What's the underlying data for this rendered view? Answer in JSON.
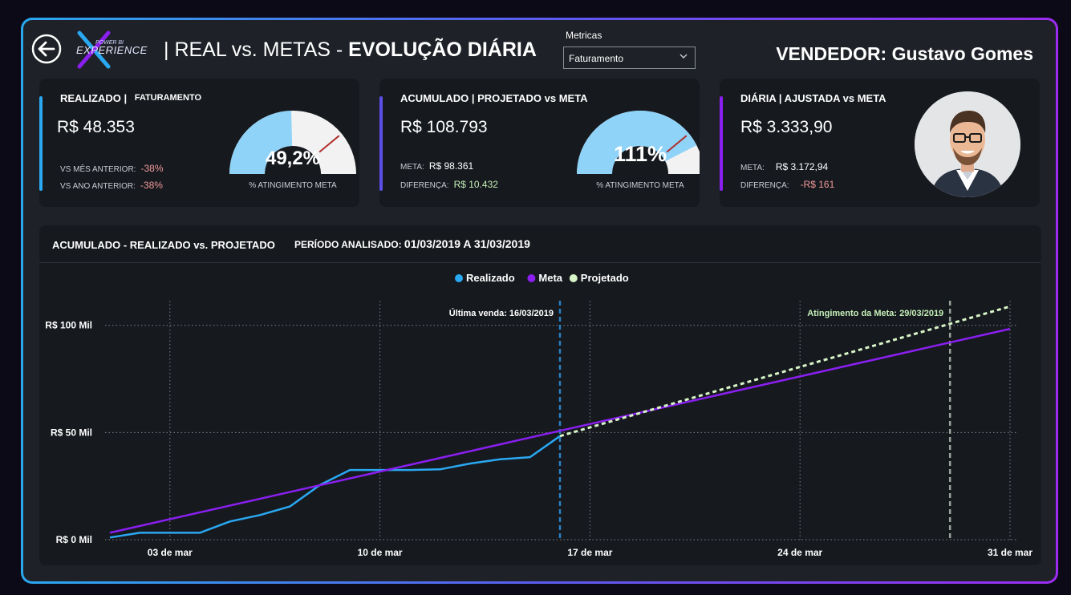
{
  "header": {
    "title_prefix": "| REAL vs. METAS - ",
    "title_bold": "EVOLUÇÃO DIÁRIA",
    "logo_text_top": "POWER BI",
    "logo_text_main": "EXPERIENCE",
    "metric_label": "Metricas",
    "metric_value": "Faturamento",
    "seller": "VENDEDOR: Gustavo Gomes"
  },
  "card1": {
    "title": "REALIZADO |",
    "subtitle": "FATURAMENTO",
    "value": "R$ 48.353",
    "row1_label": "VS MÊS ANTERIOR:",
    "row1_value": "-38%",
    "row2_label": "VS ANO ANTERIOR:",
    "row2_value": "-38%",
    "gauge_value": "49,2%",
    "gauge_fraction": 0.492,
    "gauge_target_fraction": 0.78,
    "gauge_label": "% ATINGIMENTO META"
  },
  "card2": {
    "title": "ACUMULADO | PROJETADO vs META",
    "value": "R$ 108.793",
    "row1_label": "META:",
    "row1_value": "R$ 98.361",
    "row2_label": "DIFERENÇA:",
    "row2_value": "R$ 10.432",
    "gauge_value": "111%",
    "gauge_fraction": 0.85,
    "gauge_target_fraction": 0.78,
    "gauge_label": "% ATINGIMENTO META"
  },
  "card3": {
    "title": "DIÁRIA | AJUSTADA vs META",
    "value": "R$ 3.333,90",
    "row1_label": "META:",
    "row1_value": "R$ 3.172,94",
    "row2_label": "DIFERENÇA:",
    "row2_value": "-R$ 161"
  },
  "colors": {
    "realizado": "#2aa8f2",
    "meta": "#8a1ff0",
    "projetado": "#d8f5c8",
    "gauge_fill": "#8fd3f8",
    "gauge_bg": "#f2f2f2",
    "gauge_target": "#b0302f",
    "card1_accent": "#2aa8f2",
    "card2_accent": "#5a4fe8",
    "card3_accent": "#8a1ff0"
  },
  "panel": {
    "title": "ACUMULADO - REALIZADO vs. PROJETADO",
    "period_label": "PERÍODO ANALISADO:",
    "period_value": "01/03/2019 A 31/03/2019"
  },
  "chart_data": {
    "type": "line",
    "x_start_day": 1,
    "x_end_day": 31,
    "ylim": [
      0,
      110000
    ],
    "yticks": [
      0,
      50000,
      100000
    ],
    "ytick_labels": [
      "R$ 0 Mil",
      "R$ 50 Mil",
      "R$ 100 Mil"
    ],
    "xticks": [
      3,
      10,
      17,
      24,
      31
    ],
    "xtick_labels": [
      "03 de mar",
      "10 de mar",
      "17 de mar",
      "24 de mar",
      "31 de mar"
    ],
    "grid": true,
    "legend_position": "top-center",
    "series": [
      {
        "name": "Realizado",
        "x": [
          1,
          2,
          3,
          4,
          5,
          6,
          7,
          8,
          9,
          10,
          11,
          12,
          13,
          14,
          15,
          16
        ],
        "values": [
          1000,
          3200,
          3200,
          3200,
          8500,
          11500,
          15500,
          25500,
          32500,
          32500,
          32500,
          32800,
          35500,
          37500,
          38500,
          48353
        ]
      },
      {
        "name": "Meta",
        "x": [
          1,
          31
        ],
        "values": [
          3200,
          98361
        ]
      },
      {
        "name": "Projetado",
        "x": [
          16,
          31
        ],
        "values": [
          48353,
          108793
        ]
      }
    ],
    "annotations": [
      {
        "text": "Última venda: 16/03/2019",
        "x": 16
      },
      {
        "text": "Atingimento da Meta: 29/03/2019",
        "x": 29
      }
    ]
  }
}
